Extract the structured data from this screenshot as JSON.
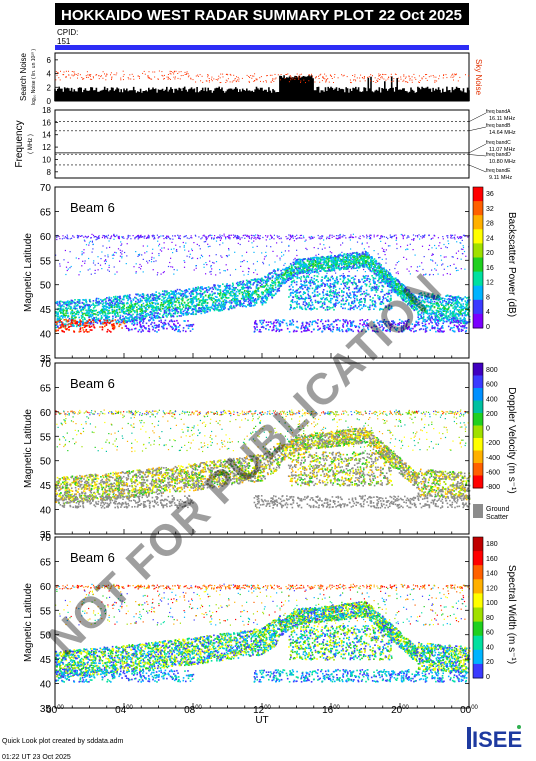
{
  "header": {
    "title": "HOKKAIDO WEST RADAR SUMMARY PLOT",
    "date": "22 Oct 2025",
    "cpid_label": "CPID:",
    "cpid_value": "151"
  },
  "noise_panel": {
    "ylabel": "Search Noise",
    "ylabel_sub": "log₁₀ Noise ( lin. un 10²⁰ )",
    "right_label": "Sky Noise",
    "ticks": [
      "6",
      "4",
      "2",
      "0"
    ]
  },
  "freq_panel": {
    "ylabel": "Frequency",
    "ylabel_sub": "( MHz )",
    "ticks": [
      "18",
      "16",
      "14",
      "12",
      "10",
      "8"
    ],
    "bands": [
      {
        "label": "freq bandA",
        "value": "16.11 MHz"
      },
      {
        "label": "freq bandB",
        "value": "14.64 MHz"
      },
      {
        "label": "freq bandC",
        "value": "11.07 MHz"
      },
      {
        "label": "freq bandD",
        "value": "10.80 MHz"
      },
      {
        "label": "freq bandE",
        "value": "9.11 MHz"
      }
    ]
  },
  "panels": [
    {
      "beam": "Beam  6",
      "ylabel": "Magnetic Latitude",
      "colorbar_label": "Backscatter Power (dB)",
      "colorbar_ticks": [
        "36",
        "32",
        "28",
        "24",
        "20",
        "16",
        "12",
        "8",
        "4",
        "0"
      ]
    },
    {
      "beam": "Beam  6",
      "ylabel": "Magnetic Latitude",
      "colorbar_label": "Doppler Velocity (m s⁻¹)",
      "colorbar_ticks": [
        "800",
        "600",
        "400",
        "200",
        "0",
        "-200",
        "-400",
        "-600",
        "-800"
      ],
      "ground_label": "Ground",
      "ground_label2": "Scatter"
    },
    {
      "beam": "Beam  6",
      "ylabel": "Magnetic Latitude",
      "colorbar_label": "Spectral Width (m s⁻¹)",
      "colorbar_ticks": [
        "180",
        "160",
        "140",
        "120",
        "100",
        "80",
        "60",
        "40",
        "20",
        "0"
      ]
    }
  ],
  "chart_data": {
    "type": "heatmap",
    "xlabel": "UT",
    "x_ticks": [
      "00",
      "04",
      "08",
      "12",
      "16",
      "20",
      "00"
    ],
    "x_tick_sup": "00",
    "xlim_hours": [
      0,
      24
    ],
    "ylim": [
      35,
      70
    ],
    "y_ticks": [
      70,
      65,
      60,
      55,
      50,
      45,
      40,
      35
    ],
    "freq_ylim": [
      7,
      18
    ],
    "noise_ylim": [
      0,
      7
    ]
  },
  "footer": {
    "credit": "Quick Look plot created by sddata.adm",
    "timestamp": "01:22 UT 23 Oct 2025",
    "logo": "ISEE"
  },
  "watermark": "NOT FOR PUBLICATION",
  "colors": {
    "cpid_bar": "#2d2df5",
    "noise_dot": "#ff3300",
    "power_scale": [
      "#7a00ff",
      "#3b3bff",
      "#00b4ff",
      "#00e0a0",
      "#20d020",
      "#a0e000",
      "#ffff00",
      "#ffb000",
      "#ff6000",
      "#ff0000"
    ],
    "ground_scatter": "#8c8c8c"
  }
}
